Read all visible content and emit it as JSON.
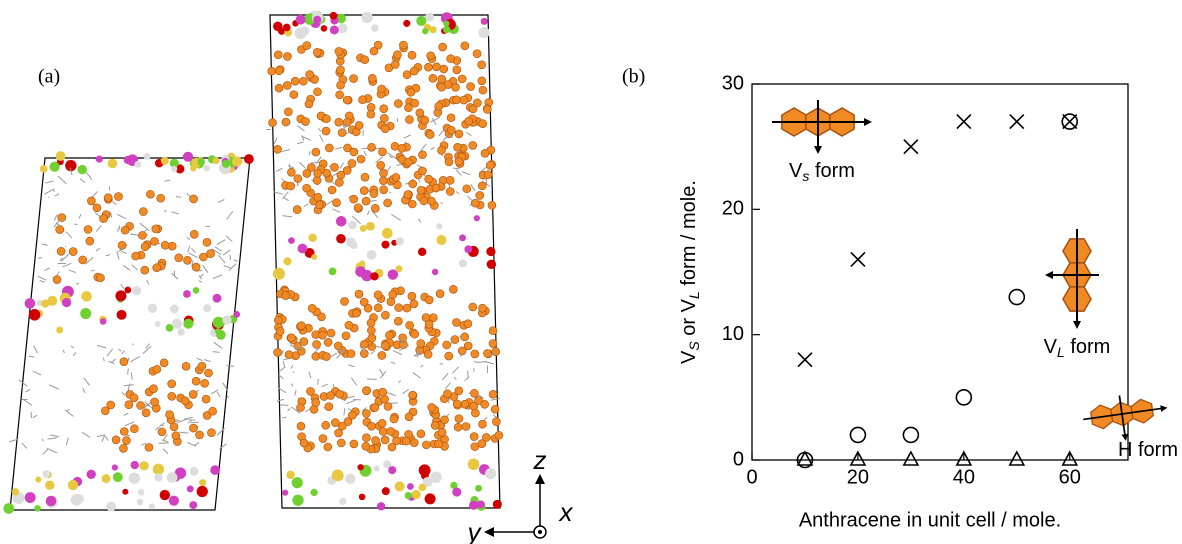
{
  "panel_a": {
    "label": "(a)",
    "axes": {
      "x": "x",
      "y": "y",
      "z": "z"
    }
  },
  "panel_b": {
    "label": "(b)"
  },
  "chart_data": {
    "type": "scatter",
    "x_label": "Anthracene in unit cell / mole.",
    "y_label_parts": [
      "V",
      "S",
      " or V",
      "L",
      " form / mole."
    ],
    "annotations": [
      [
        "V",
        "s",
        " form"
      ],
      [
        "V",
        "L",
        " form"
      ],
      [
        "H form"
      ]
    ],
    "xlim": [
      0,
      71
    ],
    "ylim": [
      0,
      30
    ],
    "xticks": [
      0,
      20,
      40,
      60
    ],
    "yticks": [
      0,
      10,
      20,
      30
    ],
    "series": [
      {
        "marker": "x",
        "color": "#000000",
        "x": [
          10,
          20,
          30,
          40,
          50,
          60
        ],
        "values": [
          8,
          16,
          25,
          27,
          27,
          27
        ]
      },
      {
        "marker": "circle",
        "color": "#000000",
        "x": [
          10,
          20,
          30,
          40,
          50,
          60
        ],
        "values": [
          0,
          2,
          2,
          5,
          13,
          27
        ]
      },
      {
        "marker": "triangle",
        "color": "#000000",
        "x": [
          10,
          20,
          30,
          40,
          50,
          60
        ],
        "values": [
          0,
          0,
          0,
          0,
          0,
          0
        ]
      }
    ]
  }
}
